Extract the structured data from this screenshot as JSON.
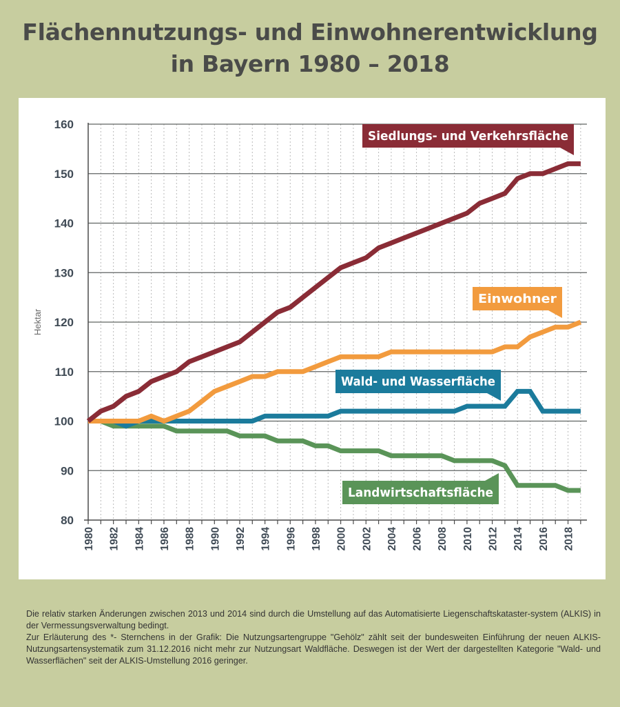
{
  "title_line1": "Flächennutzungs- und Einwohnerentwicklung",
  "title_line2": "in Bayern 1980 – 2018",
  "chart_data": {
    "type": "line",
    "ylabel": "Hektar",
    "xlabel": "",
    "ylim": [
      80,
      160
    ],
    "y_ticks": [
      80,
      90,
      100,
      110,
      120,
      130,
      140,
      150,
      160
    ],
    "xlim": [
      1980,
      2019
    ],
    "x_tick_labels": [
      "1980",
      "1982",
      "1984",
      "1986",
      "1988",
      "1990",
      "1992",
      "1994",
      "1996",
      "1998",
      "2000",
      "2002",
      "2004",
      "2006",
      "2008",
      "2010",
      "2012",
      "2014",
      "2016",
      "2018"
    ],
    "x": [
      1980,
      1981,
      1982,
      1983,
      1984,
      1985,
      1986,
      1987,
      1988,
      1989,
      1990,
      1991,
      1992,
      1993,
      1994,
      1995,
      1996,
      1997,
      1998,
      1999,
      2000,
      2001,
      2002,
      2003,
      2004,
      2005,
      2006,
      2007,
      2008,
      2009,
      2010,
      2011,
      2012,
      2013,
      2014,
      2015,
      2016,
      2017,
      2018,
      2019
    ],
    "grid": {
      "horizontal": "solid",
      "vertical": "dotted"
    },
    "series": [
      {
        "name": "Siedlungs- und Verkehrsfläche",
        "color": "#8a2c36",
        "values": [
          100,
          102,
          103,
          105,
          106,
          108,
          109,
          110,
          112,
          113,
          114,
          115,
          116,
          118,
          120,
          122,
          123,
          125,
          127,
          129,
          131,
          132,
          133,
          135,
          136,
          137,
          138,
          139,
          140,
          141,
          142,
          144,
          145,
          146,
          149,
          150,
          150,
          151,
          152,
          152
        ]
      },
      {
        "name": "Einwohner",
        "color": "#f29b3e",
        "values": [
          100,
          100,
          100,
          100,
          100,
          101,
          100,
          101,
          102,
          104,
          106,
          107,
          108,
          109,
          109,
          110,
          110,
          110,
          111,
          112,
          113,
          113,
          113,
          113,
          114,
          114,
          114,
          114,
          114,
          114,
          114,
          114,
          114,
          115,
          115,
          117,
          118,
          119,
          119,
          120
        ]
      },
      {
        "name": "Wald- und Wasserfläche",
        "color": "#1b7b9c",
        "values": [
          100,
          100,
          100,
          99,
          100,
          100,
          100,
          100,
          100,
          100,
          100,
          100,
          100,
          100,
          101,
          101,
          101,
          101,
          101,
          101,
          102,
          102,
          102,
          102,
          102,
          102,
          102,
          102,
          102,
          102,
          103,
          103,
          103,
          103,
          106,
          106,
          102,
          102,
          102,
          102
        ]
      },
      {
        "name": "Landwirtschaftsfläche",
        "color": "#5a9458",
        "values": [
          100,
          100,
          99,
          99,
          99,
          99,
          99,
          98,
          98,
          98,
          98,
          98,
          97,
          97,
          97,
          96,
          96,
          96,
          95,
          95,
          94,
          94,
          94,
          94,
          93,
          93,
          93,
          93,
          93,
          92,
          92,
          92,
          92,
          91,
          87,
          87,
          87,
          87,
          86,
          86
        ]
      }
    ],
    "labels": [
      {
        "text": "Siedlungs- und Verkehrsfläche",
        "color": "#8a2c36"
      },
      {
        "text": "Einwohner",
        "color": "#f29b3e"
      },
      {
        "text": "Wald- und Wasserfläche",
        "color": "#1b7b9c"
      },
      {
        "text": "Landwirtschaftsfläche",
        "color": "#5a9458"
      }
    ]
  },
  "footnote": {
    "p1": "Die relativ starken Änderungen zwischen 2013 und 2014 sind durch die Umstellung auf das Automatisierte Liegenschaftskataster-system (ALKIS) in der Vermessungsverwaltung bedingt.",
    "p2": "Zur Erläuterung des *- Sternchens in der Grafik: Die Nutzungsartengruppe \"Gehölz\" zählt seit der bundesweiten Einführung der neuen ALKIS- Nutzungsartensystematik zum 31.12.2016 nicht mehr zur Nutzungsart Waldfläche. Deswegen ist der Wert der dargestellten Kategorie \"Wald- und Wasserflächen\" seit der ALKIS-Umstellung 2016 geringer."
  }
}
